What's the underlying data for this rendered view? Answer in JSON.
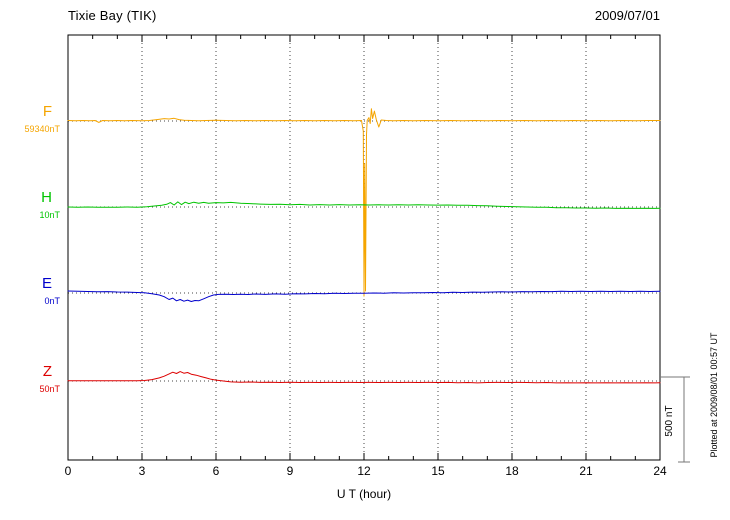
{
  "header": {
    "title": "Tixie Bay (TIK)",
    "date": "2009/07/01"
  },
  "chart_data": {
    "type": "line",
    "title": "Tixie Bay (TIK)",
    "date": "2009/07/01",
    "xlabel": "U T (hour)",
    "x_range": [
      0,
      24
    ],
    "x_ticks": [
      0,
      3,
      6,
      9,
      12,
      15,
      18,
      21,
      24
    ],
    "x_minor_tick_step": 1,
    "grid": "dotted vertical lines every 3 hours; dotted horizontal baseline per channel",
    "legend_position": "left",
    "scale_bar_label": "500 nT",
    "scale_bar_nT": 500,
    "footer_note": "Plotted at 2009/08/01 00:57 UT",
    "unit": "nT offset from channel baseline",
    "series": [
      {
        "name": "F",
        "baseline_label": "59340nT",
        "color": "#F5A500",
        "points": [
          [
            0,
            3
          ],
          [
            0.3,
            2
          ],
          [
            0.6,
            3
          ],
          [
            0.9,
            2
          ],
          [
            1.1,
            3
          ],
          [
            1.25,
            -8
          ],
          [
            1.4,
            3
          ],
          [
            1.7,
            2
          ],
          [
            2,
            3
          ],
          [
            2.3,
            2
          ],
          [
            2.6,
            3
          ],
          [
            3,
            2
          ],
          [
            3.3,
            3
          ],
          [
            3.6,
            8
          ],
          [
            3.9,
            14
          ],
          [
            4.1,
            12
          ],
          [
            4.3,
            16
          ],
          [
            4.5,
            8
          ],
          [
            4.7,
            4
          ],
          [
            5,
            3
          ],
          [
            5.3,
            2
          ],
          [
            5.6,
            3
          ],
          [
            6,
            4
          ],
          [
            6.4,
            3
          ],
          [
            6.8,
            2
          ],
          [
            7.2,
            3
          ],
          [
            7.6,
            2
          ],
          [
            8,
            3
          ],
          [
            8.4,
            2
          ],
          [
            8.8,
            3
          ],
          [
            9.2,
            2
          ],
          [
            9.6,
            3
          ],
          [
            10,
            2
          ],
          [
            10.4,
            3
          ],
          [
            10.8,
            2
          ],
          [
            11.2,
            3
          ],
          [
            11.6,
            2
          ],
          [
            11.9,
            3
          ],
          [
            11.97,
            -60
          ],
          [
            12,
            -1030
          ],
          [
            12.03,
            -250
          ],
          [
            12.06,
            -1000
          ],
          [
            12.1,
            -80
          ],
          [
            12.13,
            3
          ],
          [
            12.2,
            20
          ],
          [
            12.25,
            -15
          ],
          [
            12.3,
            72
          ],
          [
            12.35,
            15
          ],
          [
            12.42,
            58
          ],
          [
            12.5,
            8
          ],
          [
            12.6,
            -35
          ],
          [
            12.7,
            6
          ],
          [
            12.9,
            3
          ],
          [
            13.2,
            2
          ],
          [
            13.6,
            3
          ],
          [
            14,
            2
          ],
          [
            14.5,
            3
          ],
          [
            15,
            2
          ],
          [
            15.5,
            3
          ],
          [
            16,
            2
          ],
          [
            16.5,
            3
          ],
          [
            17,
            2
          ],
          [
            17.5,
            3
          ],
          [
            18,
            2
          ],
          [
            18.5,
            3
          ],
          [
            19,
            2
          ],
          [
            19.5,
            3
          ],
          [
            20,
            2
          ],
          [
            20.5,
            3
          ],
          [
            21,
            2
          ],
          [
            21.5,
            3
          ],
          [
            22,
            2
          ],
          [
            22.5,
            3
          ],
          [
            23,
            2
          ],
          [
            23.5,
            3
          ],
          [
            24,
            3
          ]
        ]
      },
      {
        "name": "H",
        "baseline_label": "10nT",
        "color": "#00C400",
        "points": [
          [
            0,
            0
          ],
          [
            0.4,
            -2
          ],
          [
            0.8,
            0
          ],
          [
            1.2,
            -2
          ],
          [
            1.6,
            -1
          ],
          [
            2,
            -2
          ],
          [
            2.4,
            0
          ],
          [
            2.8,
            -2
          ],
          [
            3.2,
            2
          ],
          [
            3.5,
            6
          ],
          [
            3.8,
            10
          ],
          [
            4,
            16
          ],
          [
            4.15,
            26
          ],
          [
            4.3,
            12
          ],
          [
            4.45,
            30
          ],
          [
            4.6,
            14
          ],
          [
            4.75,
            28
          ],
          [
            4.9,
            20
          ],
          [
            5.1,
            28
          ],
          [
            5.3,
            22
          ],
          [
            5.5,
            27
          ],
          [
            5.7,
            22
          ],
          [
            6,
            26
          ],
          [
            6.3,
            24
          ],
          [
            6.6,
            27
          ],
          [
            7,
            22
          ],
          [
            7.4,
            20
          ],
          [
            7.8,
            17
          ],
          [
            8.2,
            15
          ],
          [
            8.6,
            16
          ],
          [
            9,
            13
          ],
          [
            9.4,
            15
          ],
          [
            9.8,
            12
          ],
          [
            10.2,
            14
          ],
          [
            10.6,
            12
          ],
          [
            11,
            14
          ],
          [
            11.4,
            12
          ],
          [
            11.8,
            13
          ],
          [
            12.2,
            12
          ],
          [
            12.6,
            13
          ],
          [
            13,
            12
          ],
          [
            13.4,
            13
          ],
          [
            13.8,
            12
          ],
          [
            14.2,
            13
          ],
          [
            14.6,
            12
          ],
          [
            15,
            11
          ],
          [
            15.4,
            12
          ],
          [
            15.8,
            10
          ],
          [
            16.2,
            10
          ],
          [
            16.6,
            8
          ],
          [
            17,
            7
          ],
          [
            17.4,
            5
          ],
          [
            17.8,
            3
          ],
          [
            18.2,
            1
          ],
          [
            18.6,
            0
          ],
          [
            19,
            -1
          ],
          [
            19.4,
            -2
          ],
          [
            19.8,
            -4
          ],
          [
            20.2,
            -5
          ],
          [
            20.6,
            -6
          ],
          [
            21,
            -6
          ],
          [
            21.4,
            -7
          ],
          [
            21.8,
            -6
          ],
          [
            22.2,
            -8
          ],
          [
            22.6,
            -7
          ],
          [
            23,
            -8
          ],
          [
            23.4,
            -7
          ],
          [
            23.8,
            -8
          ],
          [
            24,
            -7
          ]
        ]
      },
      {
        "name": "E",
        "baseline_label": "0nT",
        "color": "#0000CC",
        "points": [
          [
            0,
            12
          ],
          [
            0.4,
            10
          ],
          [
            0.8,
            9
          ],
          [
            1.2,
            7
          ],
          [
            1.6,
            8
          ],
          [
            2,
            6
          ],
          [
            2.4,
            5
          ],
          [
            2.8,
            3
          ],
          [
            3.1,
            1
          ],
          [
            3.4,
            -4
          ],
          [
            3.7,
            -12
          ],
          [
            3.9,
            -22
          ],
          [
            4.1,
            -38
          ],
          [
            4.25,
            -30
          ],
          [
            4.4,
            -46
          ],
          [
            4.55,
            -38
          ],
          [
            4.7,
            -48
          ],
          [
            4.85,
            -42
          ],
          [
            5,
            -50
          ],
          [
            5.15,
            -44
          ],
          [
            5.3,
            -46
          ],
          [
            5.5,
            -34
          ],
          [
            5.7,
            -22
          ],
          [
            5.9,
            -12
          ],
          [
            6.1,
            -8
          ],
          [
            6.4,
            -7
          ],
          [
            6.7,
            -9
          ],
          [
            7,
            -7
          ],
          [
            7.3,
            -9
          ],
          [
            7.6,
            -6
          ],
          [
            8,
            -8
          ],
          [
            8.4,
            -5
          ],
          [
            8.8,
            -7
          ],
          [
            9.2,
            -4
          ],
          [
            9.6,
            -5
          ],
          [
            10,
            -3
          ],
          [
            10.4,
            -4
          ],
          [
            10.8,
            -2
          ],
          [
            11.2,
            -3
          ],
          [
            11.6,
            -1
          ],
          [
            12,
            -2
          ],
          [
            12.4,
            0
          ],
          [
            12.8,
            -1
          ],
          [
            13.2,
            1
          ],
          [
            13.6,
            0
          ],
          [
            14,
            2
          ],
          [
            14.4,
            1
          ],
          [
            14.8,
            3
          ],
          [
            15.2,
            2
          ],
          [
            15.6,
            4
          ],
          [
            16,
            3
          ],
          [
            16.4,
            5
          ],
          [
            16.8,
            4
          ],
          [
            17.2,
            6
          ],
          [
            17.6,
            7
          ],
          [
            18,
            6
          ],
          [
            18.4,
            8
          ],
          [
            18.8,
            7
          ],
          [
            19.2,
            9
          ],
          [
            19.6,
            8
          ],
          [
            20,
            10
          ],
          [
            20.4,
            9
          ],
          [
            20.8,
            10
          ],
          [
            21.2,
            9
          ],
          [
            21.6,
            10
          ],
          [
            22,
            9
          ],
          [
            22.4,
            10
          ],
          [
            22.8,
            9
          ],
          [
            23.2,
            10
          ],
          [
            23.6,
            9
          ],
          [
            24,
            10
          ]
        ]
      },
      {
        "name": "Z",
        "baseline_label": "50nT",
        "color": "#DD0000",
        "points": [
          [
            0,
            2
          ],
          [
            0.4,
            1
          ],
          [
            0.8,
            2
          ],
          [
            1.2,
            1
          ],
          [
            1.6,
            2
          ],
          [
            2,
            1
          ],
          [
            2.4,
            2
          ],
          [
            2.8,
            1
          ],
          [
            3.1,
            3
          ],
          [
            3.4,
            8
          ],
          [
            3.7,
            18
          ],
          [
            3.9,
            28
          ],
          [
            4.1,
            42
          ],
          [
            4.25,
            52
          ],
          [
            4.4,
            44
          ],
          [
            4.55,
            55
          ],
          [
            4.7,
            46
          ],
          [
            4.85,
            50
          ],
          [
            5,
            40
          ],
          [
            5.2,
            34
          ],
          [
            5.4,
            26
          ],
          [
            5.6,
            18
          ],
          [
            5.8,
            10
          ],
          [
            6,
            5
          ],
          [
            6.3,
            0
          ],
          [
            6.6,
            -5
          ],
          [
            7,
            -7
          ],
          [
            7.4,
            -6
          ],
          [
            7.8,
            -8
          ],
          [
            8.2,
            -7
          ],
          [
            8.6,
            -9
          ],
          [
            9,
            -7
          ],
          [
            9.4,
            -9
          ],
          [
            9.8,
            -8
          ],
          [
            10.2,
            -9
          ],
          [
            10.6,
            -8
          ],
          [
            11,
            -9
          ],
          [
            11.4,
            -8
          ],
          [
            11.8,
            -9
          ],
          [
            12.2,
            -8
          ],
          [
            12.6,
            -9
          ],
          [
            13,
            -8
          ],
          [
            13.4,
            -9
          ],
          [
            13.8,
            -8
          ],
          [
            14.2,
            -9
          ],
          [
            14.6,
            -8
          ],
          [
            15,
            -9
          ],
          [
            15.4,
            -8
          ],
          [
            15.8,
            -10
          ],
          [
            16.2,
            -9
          ],
          [
            16.6,
            -11
          ],
          [
            17,
            -9
          ],
          [
            17.4,
            -8
          ],
          [
            17.8,
            -9
          ],
          [
            18.2,
            -8
          ],
          [
            18.6,
            -9
          ],
          [
            19,
            -10
          ],
          [
            19.4,
            -9
          ],
          [
            19.8,
            -11
          ],
          [
            20.2,
            -10
          ],
          [
            20.6,
            -11
          ],
          [
            21,
            -10
          ],
          [
            21.4,
            -11
          ],
          [
            21.8,
            -10
          ],
          [
            22.2,
            -11
          ],
          [
            22.6,
            -10
          ],
          [
            23,
            -11
          ],
          [
            23.4,
            -10
          ],
          [
            23.8,
            -11
          ],
          [
            24,
            -10
          ]
        ]
      }
    ]
  }
}
